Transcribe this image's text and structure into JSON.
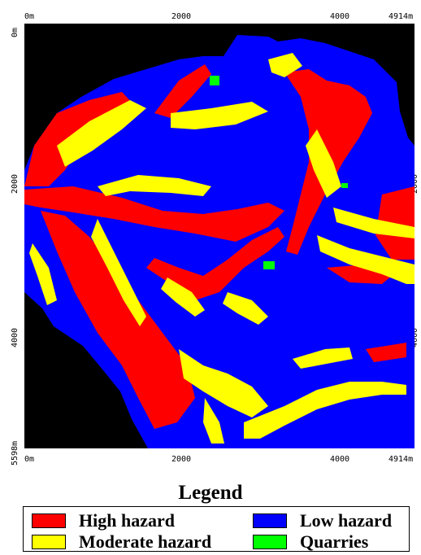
{
  "axes": {
    "top_ticks": [
      "0m",
      "2000",
      "4000",
      "4914m"
    ],
    "bottom_ticks": [
      "0m",
      "2000",
      "4000",
      "4914m"
    ],
    "left_ticks": [
      "0m",
      "2000",
      "4000",
      "5598m"
    ],
    "right_ticks": [
      "2000",
      "4000"
    ]
  },
  "legend": {
    "title": "Legend",
    "items": [
      {
        "label": "High hazard",
        "color": "#ff0000"
      },
      {
        "label": "Low hazard",
        "color": "#0000ff"
      },
      {
        "label": "Moderate hazard",
        "color": "#ffff00"
      },
      {
        "label": "Quarries",
        "color": "#00ff00"
      }
    ]
  },
  "colors": {
    "background": "#000000",
    "high": "#ff0000",
    "moderate": "#ffff00",
    "low": "#0000ff",
    "quarry": "#00ff00"
  }
}
